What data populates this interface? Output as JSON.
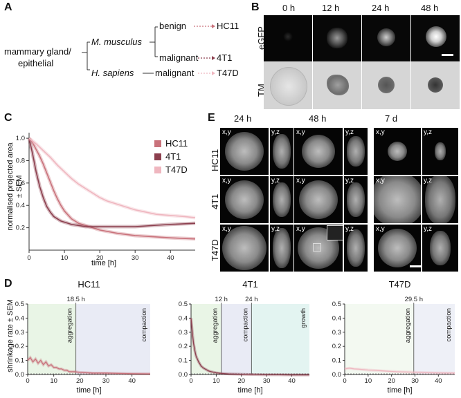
{
  "panels": {
    "a": "A",
    "b": "B",
    "c": "C",
    "d": "D",
    "e": "E"
  },
  "tree": {
    "root_line1": "mammary gland/",
    "root_line2": "epithelial",
    "mouse": "M. musculus",
    "human": "H. sapiens",
    "benign": "benign",
    "malignant_mouse": "malignant",
    "malignant_human": "malignant",
    "hc11": "HC11",
    "t41": "4T1",
    "t47d": "T47D"
  },
  "panel_b": {
    "times": [
      "0 h",
      "12 h",
      "24 h",
      "48 h"
    ],
    "row_egfp": "eGFP",
    "row_tm": "TM"
  },
  "panel_e": {
    "times": [
      "24 h",
      "48 h",
      "7 d"
    ],
    "rows": [
      "HC11",
      "4T1",
      "T47D"
    ],
    "xy": "x,y",
    "yz": "y,z"
  },
  "colors": {
    "hc11": "#c9727b",
    "t41": "#8c3f4e",
    "t47d": "#efb6bf",
    "aggregation": "#e9f5e6",
    "compaction": "#e9ebf5",
    "growth": "#e3f4f1"
  },
  "chart_data": [
    {
      "type": "line",
      "panel": "C",
      "xlabel": "time [h]",
      "ylabel": "normalised projected area",
      "ylabel2": "± SEM",
      "xlim": [
        0,
        47
      ],
      "ylim": [
        0,
        1.05
      ],
      "xticks": [
        0,
        10,
        20,
        30,
        40
      ],
      "yticks": [
        0.2,
        0.4,
        0.6,
        0.8,
        1.0
      ],
      "ytick_labels": [
        "0.2",
        "0.4",
        "0.6",
        "0.8",
        "1.0"
      ],
      "legend": [
        "HC11",
        "4T1",
        "T47D"
      ],
      "series": [
        {
          "name": "HC11",
          "x": [
            0,
            1,
            2,
            3,
            4,
            5,
            6,
            7,
            8,
            9,
            10,
            12,
            14,
            16,
            18,
            20,
            25,
            30,
            35,
            40,
            47
          ],
          "y": [
            1.0,
            0.96,
            0.9,
            0.84,
            0.77,
            0.69,
            0.61,
            0.53,
            0.46,
            0.4,
            0.35,
            0.28,
            0.24,
            0.22,
            0.2,
            0.18,
            0.15,
            0.13,
            0.12,
            0.11,
            0.1
          ]
        },
        {
          "name": "4T1",
          "x": [
            0,
            1,
            2,
            3,
            4,
            5,
            6,
            7,
            8,
            9,
            10,
            12,
            14,
            16,
            18,
            20,
            25,
            30,
            35,
            40,
            47
          ],
          "y": [
            1.0,
            0.86,
            0.7,
            0.57,
            0.47,
            0.39,
            0.34,
            0.3,
            0.28,
            0.26,
            0.25,
            0.23,
            0.22,
            0.21,
            0.21,
            0.21,
            0.21,
            0.21,
            0.22,
            0.23,
            0.24
          ]
        },
        {
          "name": "T47D",
          "x": [
            0,
            2,
            4,
            6,
            8,
            10,
            12,
            14,
            16,
            18,
            20,
            22,
            25,
            28,
            30,
            33,
            36,
            40,
            44,
            47
          ],
          "y": [
            1.0,
            0.95,
            0.89,
            0.83,
            0.76,
            0.7,
            0.64,
            0.59,
            0.55,
            0.51,
            0.47,
            0.44,
            0.41,
            0.38,
            0.36,
            0.34,
            0.32,
            0.31,
            0.3,
            0.29
          ]
        }
      ]
    },
    {
      "type": "line",
      "panel": "D",
      "title": "HC11",
      "xlabel": "time [h]",
      "ylabel": "shrinkage rate ± SEM",
      "xlim": [
        0,
        47
      ],
      "ylim": [
        0,
        0.5
      ],
      "xticks": [
        0,
        10,
        20,
        30,
        40
      ],
      "yticks": [
        0.0,
        0.1,
        0.2,
        0.3,
        0.4,
        0.5
      ],
      "ytick_labels": [
        "0.0",
        "0.1",
        "0.2",
        "0.3",
        "0.4",
        "0.5"
      ],
      "color": "#c9727b",
      "phases": [
        {
          "label": "aggregation",
          "start": 0,
          "end": 18.5,
          "fill": "#e9f5e6"
        },
        {
          "label": "compaction",
          "start": 18.5,
          "end": 47,
          "fill": "#e9ebf5"
        }
      ],
      "markers": [
        {
          "x": 18.5,
          "label": "18.5 h"
        }
      ],
      "series": [
        {
          "name": "HC11",
          "x": [
            0,
            1,
            2,
            3,
            4,
            5,
            6,
            7,
            8,
            9,
            10,
            11,
            12,
            13,
            14,
            15,
            16,
            17,
            18,
            20,
            25,
            30,
            35,
            40,
            47
          ],
          "y": [
            0.1,
            0.12,
            0.09,
            0.11,
            0.08,
            0.1,
            0.07,
            0.09,
            0.06,
            0.07,
            0.05,
            0.05,
            0.04,
            0.04,
            0.03,
            0.03,
            0.02,
            0.02,
            0.02,
            0.015,
            0.01,
            0.01,
            0.008,
            0.006,
            0.005
          ]
        }
      ]
    },
    {
      "type": "line",
      "panel": "D",
      "title": "4T1",
      "xlabel": "time [h]",
      "xlim": [
        0,
        47
      ],
      "ylim": [
        0,
        0.5
      ],
      "xticks": [
        0,
        10,
        20,
        30,
        40
      ],
      "yticks": [
        0.0,
        0.1,
        0.2,
        0.3,
        0.4,
        0.5
      ],
      "ytick_labels": [
        "0.0",
        "0.1",
        "0.2",
        "0.3",
        "0.4",
        "0.5"
      ],
      "color": "#8c3f4e",
      "phases": [
        {
          "label": "aggregation",
          "start": 0,
          "end": 12,
          "fill": "#e9f5e6"
        },
        {
          "label": "compaction",
          "start": 12,
          "end": 24,
          "fill": "#e9ebf5"
        },
        {
          "label": "growth",
          "start": 24,
          "end": 47,
          "fill": "#e3f4f1"
        }
      ],
      "markers": [
        {
          "x": 12,
          "label": "12 h"
        },
        {
          "x": 24,
          "label": "24 h"
        }
      ],
      "series": [
        {
          "name": "4T1",
          "x": [
            0,
            0.5,
            1,
            1.5,
            2,
            3,
            4,
            5,
            6,
            7,
            8,
            10,
            12,
            15,
            20,
            24,
            30,
            35,
            40,
            47
          ],
          "y": [
            0.4,
            0.3,
            0.22,
            0.17,
            0.13,
            0.09,
            0.06,
            0.045,
            0.035,
            0.025,
            0.02,
            0.012,
            0.008,
            0.004,
            0.002,
            0.0,
            -0.002,
            -0.002,
            -0.003,
            -0.003
          ]
        }
      ]
    },
    {
      "type": "line",
      "panel": "D",
      "title": "T47D",
      "xlabel": "time [h]",
      "xlim": [
        0,
        47
      ],
      "ylim": [
        0,
        0.5
      ],
      "xticks": [
        0,
        10,
        20,
        30,
        40
      ],
      "yticks": [
        0.0,
        0.1,
        0.2,
        0.3,
        0.4,
        0.5
      ],
      "ytick_labels": [
        "0.0",
        "0.1",
        "0.2",
        "0.3",
        "0.4",
        "0.5"
      ],
      "color": "#efb6bf",
      "phases": [
        {
          "label": "aggregation",
          "start": 0,
          "end": 29.5,
          "fill": "#f3f9f1"
        },
        {
          "label": "compaction",
          "start": 29.5,
          "end": 47,
          "fill": "#eef0f7"
        }
      ],
      "markers": [
        {
          "x": 29.5,
          "label": "29.5 h"
        }
      ],
      "series": [
        {
          "name": "T47D",
          "x": [
            0,
            2,
            4,
            6,
            8,
            10,
            12,
            14,
            16,
            18,
            20,
            22,
            24,
            26,
            28,
            30,
            35,
            40,
            47
          ],
          "y": [
            0.04,
            0.045,
            0.04,
            0.038,
            0.035,
            0.032,
            0.03,
            0.028,
            0.026,
            0.024,
            0.022,
            0.02,
            0.019,
            0.018,
            0.017,
            0.016,
            0.013,
            0.011,
            0.01
          ]
        }
      ]
    }
  ]
}
